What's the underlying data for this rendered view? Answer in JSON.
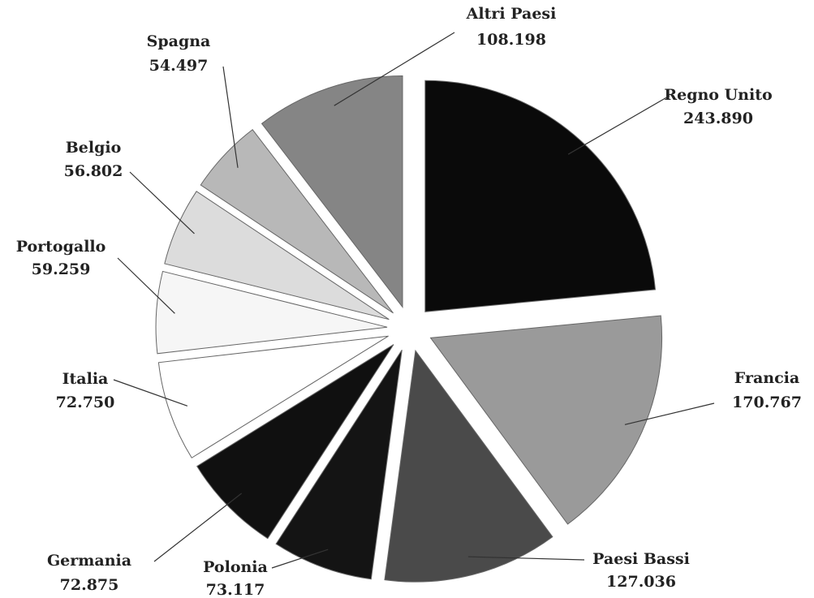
{
  "chart_data": {
    "type": "pie",
    "categories": [
      "Regno Unito",
      "Francia",
      "Paesi Bassi",
      "Polonia",
      "Germania",
      "Italia",
      "Portogallo",
      "Belgio",
      "Spagna",
      "Altri Paesi"
    ],
    "values": [
      243890,
      170767,
      127036,
      73117,
      72875,
      72750,
      59259,
      56802,
      54497,
      108198
    ],
    "value_labels": [
      "243.890",
      "170.767",
      "127.036",
      "73.117",
      "72.875",
      "72.750",
      "59.259",
      "56.802",
      "54.497",
      "108.198"
    ],
    "colors": [
      "#0a0a0a",
      "#9a9a9a",
      "#4a4a4a",
      "#141414",
      "#101010",
      "#ffffff",
      "#f6f6f6",
      "#dcdcdc",
      "#b8b8b8",
      "#858585"
    ]
  }
}
